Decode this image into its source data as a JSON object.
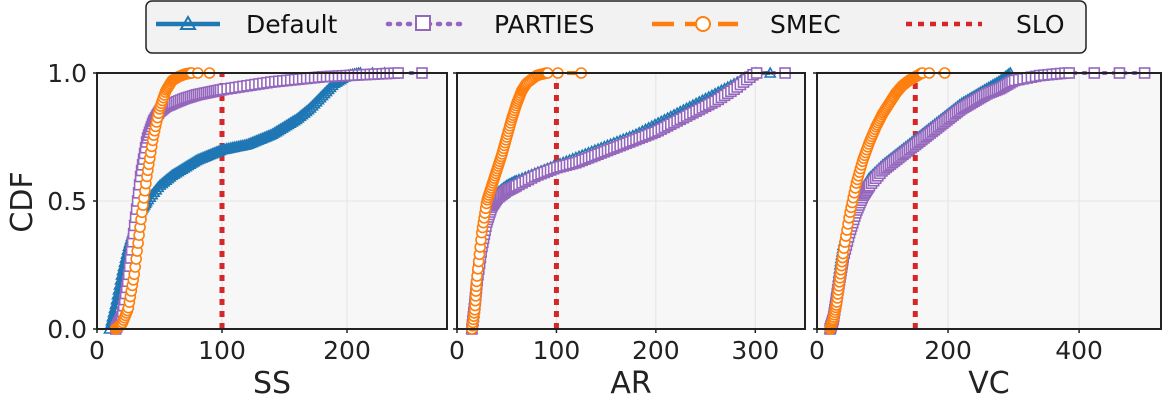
{
  "legend": {
    "entries": [
      {
        "name": "Default",
        "color": "#1f77b4",
        "marker": "triangle",
        "linestyle": "solid"
      },
      {
        "name": "PARTIES",
        "color": "#9467bd",
        "marker": "square",
        "linestyle": "dotted"
      },
      {
        "name": "SMEC",
        "color": "#ff7f0e",
        "marker": "circle",
        "linestyle": "dashed"
      },
      {
        "name": "SLO",
        "color": "#d62728",
        "marker": "none",
        "linestyle": "dotted"
      }
    ]
  },
  "chart_data": [
    {
      "type": "line",
      "title": "",
      "xlabel": "SS",
      "ylabel": "CDF",
      "xlim": [
        0,
        280
      ],
      "ylim": [
        0,
        1
      ],
      "xticks": [
        0,
        100,
        200
      ],
      "yticks": [
        0,
        0.5,
        1.0
      ],
      "ytick_labels": [
        "0.0",
        "0.5",
        "1.0"
      ],
      "grid": true,
      "slo": 100,
      "series": [
        {
          "name": "Default",
          "x": [
            10,
            15,
            20,
            25,
            30,
            35,
            40,
            50,
            60,
            70,
            80,
            90,
            100,
            110,
            120,
            130,
            140,
            150,
            160,
            170,
            180,
            190,
            200,
            210,
            220,
            230
          ],
          "y": [
            0.0,
            0.1,
            0.22,
            0.32,
            0.4,
            0.46,
            0.5,
            0.56,
            0.6,
            0.63,
            0.66,
            0.68,
            0.7,
            0.71,
            0.72,
            0.74,
            0.76,
            0.79,
            0.82,
            0.86,
            0.91,
            0.96,
            0.99,
            1.0,
            1.0,
            1.0
          ]
        },
        {
          "name": "PARTIES",
          "x": [
            15,
            20,
            25,
            30,
            35,
            40,
            45,
            50,
            55,
            60,
            70,
            80,
            90,
            100,
            120,
            140,
            160,
            180,
            200,
            220,
            240,
            260
          ],
          "y": [
            0.0,
            0.05,
            0.2,
            0.4,
            0.6,
            0.74,
            0.81,
            0.85,
            0.87,
            0.88,
            0.9,
            0.915,
            0.925,
            0.935,
            0.95,
            0.965,
            0.975,
            0.985,
            0.99,
            0.995,
            1.0,
            1.0
          ]
        },
        {
          "name": "SMEC",
          "x": [
            15,
            20,
            25,
            30,
            35,
            40,
            45,
            50,
            55,
            60,
            65,
            70,
            75,
            80,
            90
          ],
          "y": [
            0.0,
            0.02,
            0.08,
            0.22,
            0.42,
            0.6,
            0.75,
            0.86,
            0.93,
            0.97,
            0.985,
            0.995,
            1.0,
            1.0,
            1.0
          ]
        }
      ]
    },
    {
      "type": "line",
      "title": "",
      "xlabel": "AR",
      "ylabel": "",
      "xlim": [
        0,
        350
      ],
      "ylim": [
        0,
        1
      ],
      "xticks": [
        0,
        100,
        200,
        300
      ],
      "yticks": [
        0,
        0.5,
        1.0
      ],
      "grid": true,
      "slo": 100,
      "series": [
        {
          "name": "Default",
          "x": [
            15,
            18,
            20,
            25,
            30,
            35,
            40,
            50,
            60,
            80,
            100,
            120,
            140,
            160,
            180,
            200,
            220,
            240,
            260,
            280,
            300,
            315
          ],
          "y": [
            0.0,
            0.1,
            0.2,
            0.35,
            0.45,
            0.5,
            0.53,
            0.56,
            0.58,
            0.61,
            0.64,
            0.67,
            0.7,
            0.73,
            0.76,
            0.8,
            0.84,
            0.88,
            0.92,
            0.96,
            1.0,
            1.0
          ]
        },
        {
          "name": "PARTIES",
          "x": [
            15,
            18,
            20,
            25,
            30,
            35,
            40,
            50,
            60,
            80,
            100,
            120,
            140,
            160,
            180,
            200,
            220,
            240,
            260,
            280,
            300,
            330
          ],
          "y": [
            0.0,
            0.1,
            0.18,
            0.32,
            0.42,
            0.48,
            0.51,
            0.54,
            0.56,
            0.6,
            0.63,
            0.65,
            0.68,
            0.71,
            0.74,
            0.77,
            0.81,
            0.85,
            0.89,
            0.94,
            1.0,
            1.0
          ]
        },
        {
          "name": "SMEC",
          "x": [
            15,
            18,
            20,
            25,
            30,
            35,
            40,
            45,
            50,
            55,
            60,
            65,
            70,
            80,
            90,
            100,
            125
          ],
          "y": [
            0.0,
            0.08,
            0.2,
            0.38,
            0.5,
            0.56,
            0.62,
            0.68,
            0.75,
            0.82,
            0.88,
            0.93,
            0.96,
            0.99,
            1.0,
            1.0,
            1.0
          ]
        }
      ]
    },
    {
      "type": "line",
      "title": "",
      "xlabel": "VC",
      "ylabel": "",
      "xlim": [
        0,
        525
      ],
      "ylim": [
        0,
        1
      ],
      "xticks": [
        0,
        200,
        400
      ],
      "yticks": [
        0,
        0.5,
        1.0
      ],
      "grid": true,
      "slo": 150,
      "series": [
        {
          "name": "Default",
          "x": [
            20,
            25,
            30,
            35,
            40,
            50,
            60,
            70,
            80,
            100,
            120,
            140,
            160,
            180,
            200,
            220,
            240,
            260,
            280,
            295
          ],
          "y": [
            0.0,
            0.05,
            0.15,
            0.25,
            0.33,
            0.43,
            0.5,
            0.55,
            0.59,
            0.64,
            0.68,
            0.72,
            0.76,
            0.8,
            0.84,
            0.88,
            0.91,
            0.94,
            0.97,
            1.0
          ]
        },
        {
          "name": "PARTIES",
          "x": [
            20,
            25,
            30,
            35,
            40,
            50,
            60,
            70,
            80,
            100,
            120,
            140,
            160,
            180,
            200,
            220,
            240,
            260,
            280,
            300,
            340,
            380,
            420,
            460,
            500
          ],
          "y": [
            0.0,
            0.04,
            0.12,
            0.2,
            0.28,
            0.38,
            0.46,
            0.52,
            0.56,
            0.62,
            0.66,
            0.7,
            0.74,
            0.78,
            0.82,
            0.86,
            0.89,
            0.92,
            0.94,
            0.97,
            0.99,
            1.0,
            1.0,
            1.0,
            1.0
          ]
        },
        {
          "name": "SMEC",
          "x": [
            20,
            25,
            30,
            35,
            40,
            50,
            60,
            70,
            80,
            90,
            100,
            110,
            120,
            130,
            140,
            150,
            160,
            170,
            195
          ],
          "y": [
            0.0,
            0.04,
            0.1,
            0.2,
            0.3,
            0.45,
            0.57,
            0.66,
            0.73,
            0.79,
            0.84,
            0.88,
            0.92,
            0.95,
            0.97,
            0.985,
            1.0,
            1.0,
            1.0
          ]
        }
      ]
    }
  ]
}
